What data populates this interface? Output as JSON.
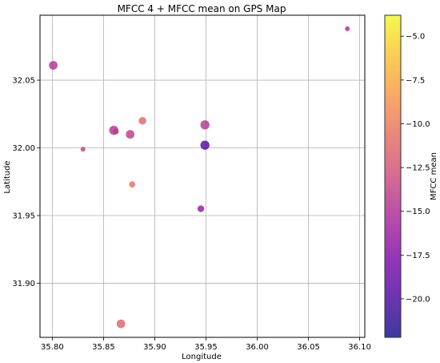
{
  "chart_data": {
    "type": "scatter",
    "title": "MFCC 4 + MFCC mean on GPS Map",
    "xlabel": "Longitude",
    "ylabel": "Latitude",
    "xlim": [
      35.788,
      36.105
    ],
    "ylim": [
      31.86,
      32.098
    ],
    "xticks": [
      35.8,
      35.85,
      35.9,
      35.95,
      36.0,
      36.05,
      36.1
    ],
    "xtick_labels": [
      "35.80",
      "35.85",
      "35.90",
      "35.95",
      "36.00",
      "36.05",
      "36.10"
    ],
    "yticks": [
      31.9,
      31.95,
      32.0,
      32.05
    ],
    "ytick_labels": [
      "31.90",
      "31.95",
      "32.00",
      "32.05"
    ],
    "grid": true,
    "colorbar": {
      "label": "MFCC mean",
      "colormap": "plasma",
      "range": [
        -22.2,
        -3.8
      ],
      "ticks": [
        -5.0,
        -7.5,
        -10.0,
        -12.5,
        -15.0,
        -17.5,
        -20.0
      ],
      "tick_labels": [
        "−5.0",
        "−7.5",
        "−10.0",
        "−12.5",
        "−15.0",
        "−17.5",
        "−20.0"
      ]
    },
    "points": [
      {
        "x": 35.801,
        "y": 32.061,
        "mfcc4": 9.0,
        "mfcc_mean": -14.5
      },
      {
        "x": 35.83,
        "y": 31.999,
        "mfcc4": 5.0,
        "mfcc_mean": -13.8
      },
      {
        "x": 35.86,
        "y": 32.013,
        "mfcc4": 9.5,
        "mfcc_mean": -14.5
      },
      {
        "x": 35.862,
        "y": 32.012,
        "mfcc4": 6.0,
        "mfcc_mean": -14.0
      },
      {
        "x": 35.867,
        "y": 31.87,
        "mfcc4": 9.0,
        "mfcc_mean": -11.5
      },
      {
        "x": 35.876,
        "y": 32.01,
        "mfcc4": 9.0,
        "mfcc_mean": -14.0
      },
      {
        "x": 35.878,
        "y": 31.973,
        "mfcc4": 6.5,
        "mfcc_mean": -10.5
      },
      {
        "x": 35.888,
        "y": 32.02,
        "mfcc4": 8.0,
        "mfcc_mean": -11.0
      },
      {
        "x": 35.945,
        "y": 31.955,
        "mfcc4": 7.0,
        "mfcc_mean": -16.3
      },
      {
        "x": 35.949,
        "y": 32.017,
        "mfcc4": 9.5,
        "mfcc_mean": -14.5
      },
      {
        "x": 35.949,
        "y": 32.002,
        "mfcc4": 9.5,
        "mfcc_mean": -19.5
      },
      {
        "x": 36.088,
        "y": 32.088,
        "mfcc4": 5.0,
        "mfcc_mean": -15.0
      }
    ]
  }
}
